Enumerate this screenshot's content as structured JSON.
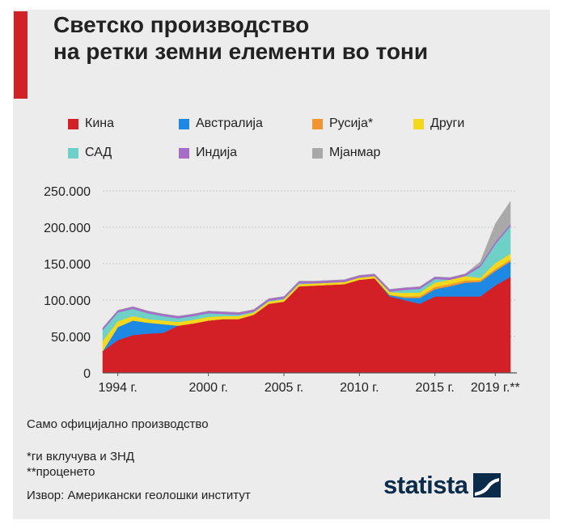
{
  "title": {
    "line1": "Светско производство",
    "line2": "на ретки земни елементи во тони"
  },
  "colors": {
    "accent": "#d32027",
    "background": "#ececec",
    "grid": "#c8c8c8"
  },
  "legend": [
    {
      "label": "Кина",
      "color": "#d32027"
    },
    {
      "label": "Австралија",
      "color": "#1e88e5"
    },
    {
      "label": "Русија*",
      "color": "#f0962e"
    },
    {
      "label": "Други",
      "color": "#f4d81c"
    },
    {
      "label": "САД",
      "color": "#6fd0c8"
    },
    {
      "label": "Индија",
      "color": "#a56cc8"
    },
    {
      "label": "Мјанмар",
      "color": "#a9a9a9"
    }
  ],
  "chart_data": {
    "type": "area",
    "stacked": true,
    "x": [
      1993,
      1994,
      1995,
      1996,
      1997,
      1998,
      1999,
      2000,
      2001,
      2002,
      2003,
      2004,
      2005,
      2006,
      2007,
      2008,
      2009,
      2010,
      2011,
      2012,
      2013,
      2014,
      2015,
      2016,
      2017,
      2018,
      2019,
      2020
    ],
    "x_tick_values": [
      1994,
      2000,
      2005,
      2010,
      2015,
      2019
    ],
    "x_tick_labels": [
      "1994 г.",
      "2000 г.",
      "2005 г.",
      "2010 г.",
      "2015 г.",
      "2019 г.**"
    ],
    "y_ticks": [
      0,
      50000,
      100000,
      150000,
      200000,
      250000
    ],
    "y_tick_labels": [
      "0",
      "50.000",
      "100.000",
      "150.000",
      "200.000",
      "250.000"
    ],
    "ylim": [
      0,
      250000
    ],
    "xlim": [
      1993,
      2020
    ],
    "grid": true,
    "series": [
      {
        "name": "Кина",
        "color": "#d32027",
        "values": [
          30000,
          45000,
          52000,
          54000,
          55000,
          65000,
          68000,
          72000,
          74000,
          74000,
          80000,
          95000,
          98000,
          119000,
          120000,
          121000,
          122000,
          128000,
          130000,
          105000,
          100000,
          95000,
          105000,
          105000,
          105000,
          105000,
          120000,
          132000
        ]
      },
      {
        "name": "Австралија",
        "color": "#1e88e5",
        "values": [
          0,
          18000,
          20000,
          15000,
          12000,
          0,
          0,
          0,
          0,
          0,
          0,
          0,
          0,
          0,
          0,
          0,
          0,
          0,
          0,
          2000,
          3000,
          8000,
          10000,
          14000,
          19000,
          20000,
          20000,
          21000
        ]
      },
      {
        "name": "Русија*",
        "color": "#f0962e",
        "values": [
          0,
          0,
          0,
          0,
          0,
          0,
          0,
          0,
          0,
          0,
          0,
          0,
          0,
          0,
          0,
          0,
          0,
          0,
          0,
          0,
          2000,
          2500,
          3000,
          3000,
          3000,
          2600,
          2700,
          2700
        ]
      },
      {
        "name": "Други",
        "color": "#f4d81c",
        "values": [
          14000,
          8000,
          6000,
          5000,
          5000,
          5000,
          5000,
          5000,
          4000,
          4000,
          3000,
          3000,
          3000,
          3000,
          3000,
          3000,
          3000,
          3000,
          3000,
          4000,
          5000,
          5000,
          6000,
          6000,
          6000,
          3000,
          8000,
          8000
        ]
      },
      {
        "name": "САД",
        "color": "#6fd0c8",
        "values": [
          15000,
          12000,
          10000,
          8000,
          6000,
          5000,
          5000,
          5000,
          3000,
          2000,
          1000,
          1000,
          1000,
          1000,
          0,
          0,
          0,
          0,
          0,
          800,
          4000,
          5000,
          5000,
          0,
          0,
          15000,
          26000,
          38000
        ]
      },
      {
        "name": "Индија",
        "color": "#a56cc8",
        "values": [
          3000,
          3000,
          3000,
          3000,
          3000,
          3000,
          3000,
          3000,
          3000,
          3000,
          3000,
          3000,
          3000,
          3000,
          3000,
          3000,
          3000,
          3000,
          3000,
          3000,
          3000,
          3000,
          3000,
          3000,
          3000,
          3000,
          3000,
          3000
        ]
      },
      {
        "name": "Мјанмар",
        "color": "#a9a9a9",
        "values": [
          0,
          0,
          0,
          0,
          0,
          0,
          0,
          0,
          0,
          0,
          0,
          0,
          0,
          0,
          0,
          0,
          0,
          0,
          0,
          0,
          0,
          0,
          0,
          0,
          0,
          4000,
          25000,
          31000
        ]
      }
    ]
  },
  "notes": {
    "official": "Само официјално производство",
    "footnote1": "*ги вклучува и ЗНД",
    "footnote2": "**проценето",
    "source": "Извор: Американски геолошки институт"
  },
  "brand": {
    "name": "statista",
    "icon": "statista-logo-icon"
  }
}
